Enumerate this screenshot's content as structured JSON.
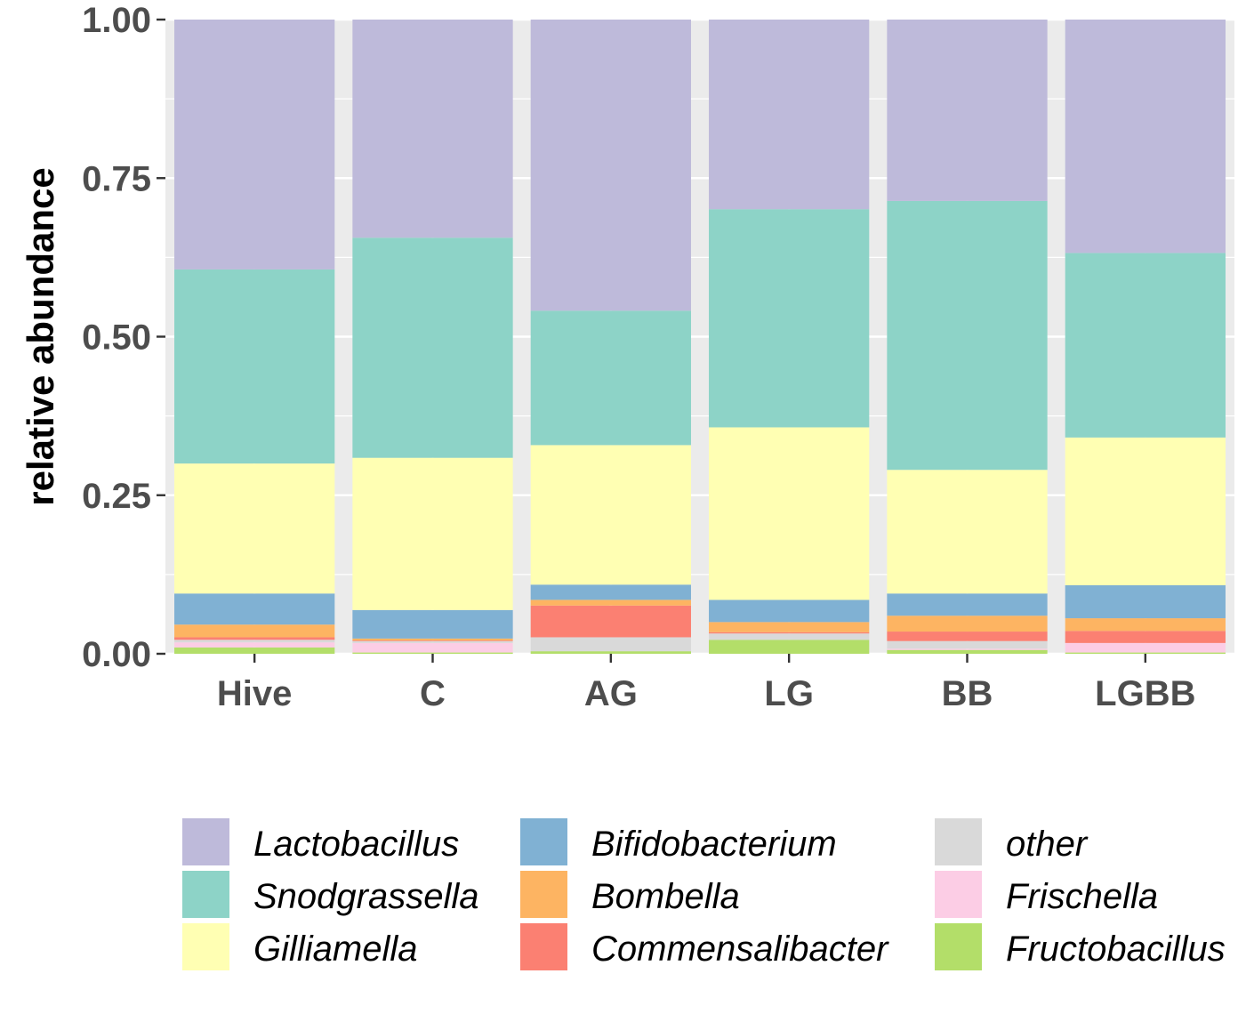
{
  "chart_data": {
    "type": "bar",
    "stacked": true,
    "categories": [
      "Hive",
      "C",
      "AG",
      "LG",
      "BB",
      "LGBB"
    ],
    "ylabel": "relative abundance",
    "xlabel": "",
    "ylim": [
      0,
      1
    ],
    "yticks": [
      "0.00",
      "0.25",
      "0.50",
      "0.75",
      "1.00"
    ],
    "grid": true,
    "legend_position": "bottom",
    "series": [
      {
        "name": "Fructobacillus",
        "color": "#b3de69",
        "values": [
          0.01,
          0.002,
          0.004,
          0.022,
          0.006,
          0.002
        ]
      },
      {
        "name": "Frischella",
        "color": "#fccde5",
        "values": [
          0.008,
          0.015,
          0.0,
          0.0,
          0.002,
          0.015
        ]
      },
      {
        "name": "other",
        "color": "#d9d9d9",
        "values": [
          0.004,
          0.003,
          0.022,
          0.01,
          0.012,
          0.0
        ]
      },
      {
        "name": "Commensalibacter",
        "color": "#fb8072",
        "values": [
          0.004,
          0.001,
          0.05,
          0.002,
          0.015,
          0.019
        ]
      },
      {
        "name": "Bombella",
        "color": "#fdb462",
        "values": [
          0.02,
          0.003,
          0.009,
          0.016,
          0.025,
          0.02
        ]
      },
      {
        "name": "Bifidobacterium",
        "color": "#80b1d3",
        "values": [
          0.049,
          0.045,
          0.024,
          0.035,
          0.035,
          0.052
        ]
      },
      {
        "name": "Gilliamella",
        "color": "#ffffb3",
        "values": [
          0.205,
          0.24,
          0.22,
          0.272,
          0.195,
          0.233
        ]
      },
      {
        "name": "Snodgrassella",
        "color": "#8dd3c7",
        "values": [
          0.306,
          0.347,
          0.212,
          0.344,
          0.424,
          0.291
        ]
      },
      {
        "name": "Lactobacillus",
        "color": "#bebada",
        "values": [
          0.394,
          0.344,
          0.459,
          0.299,
          0.286,
          0.368
        ]
      }
    ],
    "legend_order": [
      "Lactobacillus",
      "Snodgrassella",
      "Gilliamella",
      "Bifidobacterium",
      "Bombella",
      "Commensalibacter",
      "other",
      "Frischella",
      "Fructobacillus"
    ],
    "panel_background": "#ebebeb",
    "gridline_color": "#ffffff"
  }
}
